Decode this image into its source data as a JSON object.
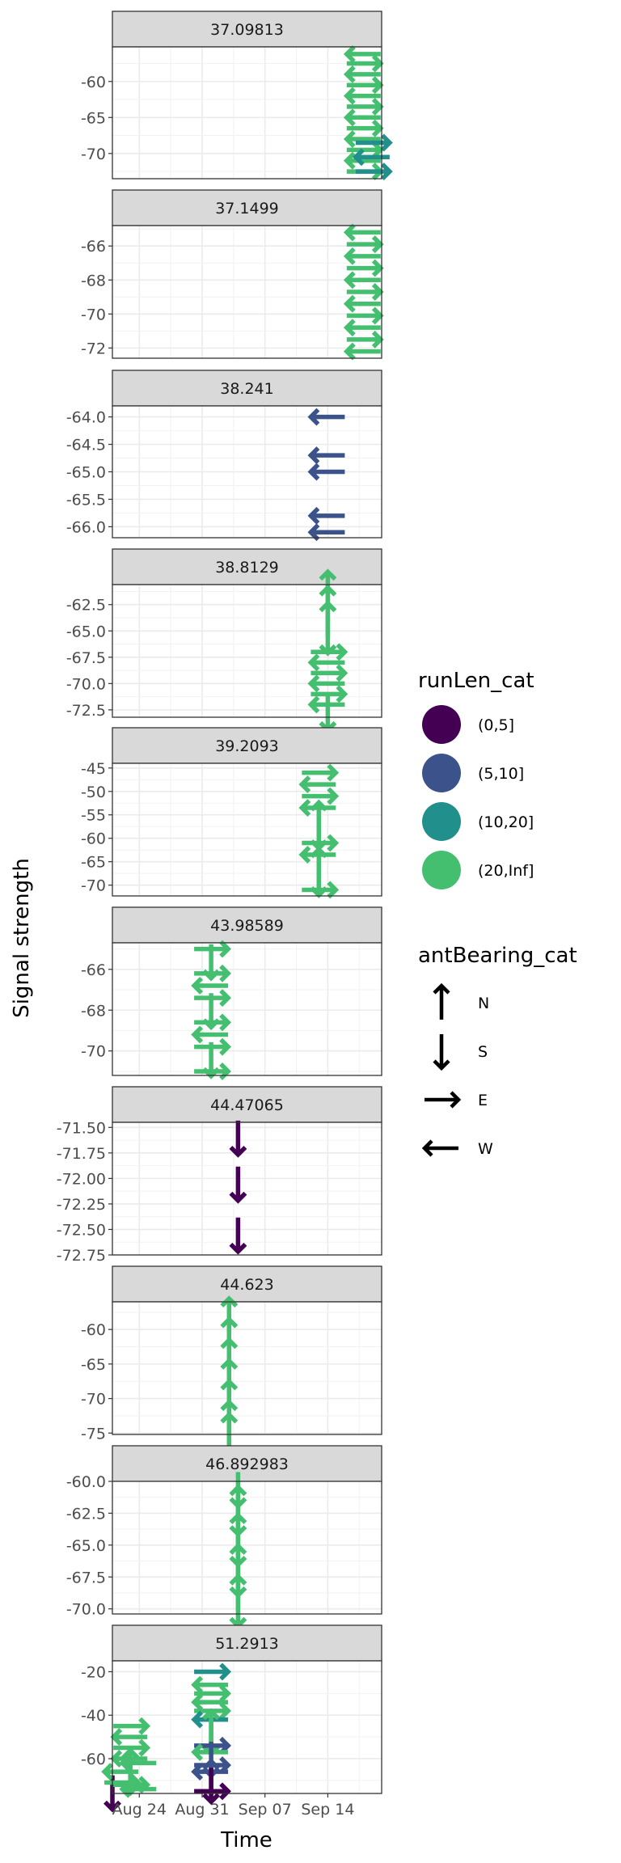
{
  "chart_data": {
    "type": "scatter",
    "xlabel": "Time",
    "ylabel": "Signal strength",
    "x_ticks": [
      "Aug 24",
      "Aug 31",
      "Sep 07",
      "Sep 14"
    ],
    "x_range": [
      "2023-08-21",
      "2023-09-20"
    ],
    "grid": true,
    "legend_placement": "right",
    "legends": [
      {
        "title": "runLen_cat",
        "entries": [
          {
            "label": "(0,5]",
            "color": "#440154"
          },
          {
            "label": "(5,10]",
            "color": "#3B528B"
          },
          {
            "label": "(10,20]",
            "color": "#21908C"
          },
          {
            "label": "(20,Inf]",
            "color": "#44BF70"
          }
        ]
      },
      {
        "title": "antBearing_cat",
        "entries": [
          {
            "label": "N",
            "icon": "arrow-up"
          },
          {
            "label": "S",
            "icon": "arrow-down"
          },
          {
            "label": "E",
            "icon": "arrow-right"
          },
          {
            "label": "W",
            "icon": "arrow-left"
          }
        ]
      }
    ],
    "panels": [
      {
        "label": "37.09813",
        "ylim": [
          -73.5,
          -55.2
        ],
        "y_ticks": [
          -60,
          -65,
          -70
        ],
        "points": [
          {
            "x": "2023-09-18",
            "y": -56.2,
            "bearing": "W",
            "run": "(20,Inf]"
          },
          {
            "x": "2023-09-18",
            "y": -57.5,
            "bearing": "E",
            "run": "(20,Inf]"
          },
          {
            "x": "2023-09-18",
            "y": -59.0,
            "bearing": "W",
            "run": "(20,Inf]"
          },
          {
            "x": "2023-09-18",
            "y": -60.5,
            "bearing": "E",
            "run": "(20,Inf]"
          },
          {
            "x": "2023-09-18",
            "y": -62.0,
            "bearing": "W",
            "run": "(20,Inf]"
          },
          {
            "x": "2023-09-18",
            "y": -63.5,
            "bearing": "E",
            "run": "(20,Inf]"
          },
          {
            "x": "2023-09-18",
            "y": -65.0,
            "bearing": "W",
            "run": "(20,Inf]"
          },
          {
            "x": "2023-09-18",
            "y": -66.5,
            "bearing": "E",
            "run": "(20,Inf]"
          },
          {
            "x": "2023-09-18",
            "y": -68.0,
            "bearing": "W",
            "run": "(20,Inf]"
          },
          {
            "x": "2023-09-18",
            "y": -69.5,
            "bearing": "E",
            "run": "(20,Inf]"
          },
          {
            "x": "2023-09-18",
            "y": -71.0,
            "bearing": "W",
            "run": "(20,Inf]"
          },
          {
            "x": "2023-09-18",
            "y": -72.5,
            "bearing": "E",
            "run": "(20,Inf]"
          },
          {
            "x": "2023-09-19",
            "y": -68.5,
            "bearing": "E",
            "run": "(10,20]"
          },
          {
            "x": "2023-09-19",
            "y": -70.5,
            "bearing": "W",
            "run": "(10,20]"
          },
          {
            "x": "2023-09-19",
            "y": -72.5,
            "bearing": "E",
            "run": "(10,20]"
          }
        ]
      },
      {
        "label": "37.1499",
        "ylim": [
          -72.6,
          -64.8
        ],
        "y_ticks": [
          -66,
          -68,
          -70,
          -72
        ],
        "points": [
          {
            "x": "2023-09-18",
            "y": -65.2,
            "bearing": "W",
            "run": "(20,Inf]"
          },
          {
            "x": "2023-09-18",
            "y": -65.9,
            "bearing": "E",
            "run": "(20,Inf]"
          },
          {
            "x": "2023-09-18",
            "y": -66.6,
            "bearing": "W",
            "run": "(20,Inf]"
          },
          {
            "x": "2023-09-18",
            "y": -67.3,
            "bearing": "E",
            "run": "(20,Inf]"
          },
          {
            "x": "2023-09-18",
            "y": -68.0,
            "bearing": "W",
            "run": "(20,Inf]"
          },
          {
            "x": "2023-09-18",
            "y": -68.7,
            "bearing": "E",
            "run": "(20,Inf]"
          },
          {
            "x": "2023-09-18",
            "y": -69.4,
            "bearing": "W",
            "run": "(20,Inf]"
          },
          {
            "x": "2023-09-18",
            "y": -70.1,
            "bearing": "E",
            "run": "(20,Inf]"
          },
          {
            "x": "2023-09-18",
            "y": -70.8,
            "bearing": "W",
            "run": "(20,Inf]"
          },
          {
            "x": "2023-09-18",
            "y": -71.5,
            "bearing": "E",
            "run": "(20,Inf]"
          },
          {
            "x": "2023-09-18",
            "y": -72.2,
            "bearing": "W",
            "run": "(20,Inf]"
          }
        ]
      },
      {
        "label": "38.241",
        "ylim": [
          -66.2,
          -63.8
        ],
        "y_ticks": [
          -64.0,
          -64.5,
          -65.0,
          -65.5,
          -66.0
        ],
        "y_decimals": 1,
        "points": [
          {
            "x": "2023-09-14",
            "y": -64.0,
            "bearing": "W",
            "run": "(5,10]"
          },
          {
            "x": "2023-09-14",
            "y": -64.7,
            "bearing": "W",
            "run": "(5,10]"
          },
          {
            "x": "2023-09-14",
            "y": -65.0,
            "bearing": "W",
            "run": "(5,10]"
          },
          {
            "x": "2023-09-14",
            "y": -65.8,
            "bearing": "W",
            "run": "(5,10]"
          },
          {
            "x": "2023-09-14",
            "y": -66.1,
            "bearing": "W",
            "run": "(5,10]"
          }
        ]
      },
      {
        "label": "38.8129",
        "ylim": [
          -73.2,
          -60.6
        ],
        "y_ticks": [
          -62.5,
          -65.0,
          -67.5,
          -70.0,
          -72.5
        ],
        "y_decimals": 1,
        "points": [
          {
            "x": "2023-09-14",
            "y": -61.0,
            "bearing": "N",
            "run": "(20,Inf]"
          },
          {
            "x": "2023-09-14",
            "y": -62.5,
            "bearing": "N",
            "run": "(20,Inf]"
          },
          {
            "x": "2023-09-14",
            "y": -64.0,
            "bearing": "N",
            "run": "(20,Inf]"
          },
          {
            "x": "2023-09-14",
            "y": -65.5,
            "bearing": "S",
            "run": "(20,Inf]"
          },
          {
            "x": "2023-09-14",
            "y": -67.0,
            "bearing": "E",
            "run": "(20,Inf]"
          },
          {
            "x": "2023-09-14",
            "y": -68.0,
            "bearing": "W",
            "run": "(20,Inf]"
          },
          {
            "x": "2023-09-14",
            "y": -69.0,
            "bearing": "E",
            "run": "(20,Inf]"
          },
          {
            "x": "2023-09-14",
            "y": -70.0,
            "bearing": "W",
            "run": "(20,Inf]"
          },
          {
            "x": "2023-09-14",
            "y": -71.0,
            "bearing": "E",
            "run": "(20,Inf]"
          },
          {
            "x": "2023-09-14",
            "y": -72.0,
            "bearing": "W",
            "run": "(20,Inf]"
          },
          {
            "x": "2023-09-14",
            "y": -72.8,
            "bearing": "S",
            "run": "(20,Inf]"
          }
        ]
      },
      {
        "label": "39.2093",
        "ylim": [
          -72.3,
          -44.0
        ],
        "y_ticks": [
          -45,
          -50,
          -55,
          -60,
          -65,
          -70
        ],
        "points": [
          {
            "x": "2023-09-13",
            "y": -46.0,
            "bearing": "E",
            "run": "(20,Inf]"
          },
          {
            "x": "2023-09-13",
            "y": -48.5,
            "bearing": "W",
            "run": "(20,Inf]"
          },
          {
            "x": "2023-09-13",
            "y": -51.0,
            "bearing": "E",
            "run": "(20,Inf]"
          },
          {
            "x": "2023-09-13",
            "y": -53.5,
            "bearing": "W",
            "run": "(20,Inf]"
          },
          {
            "x": "2023-09-13",
            "y": -56.0,
            "bearing": "N",
            "run": "(20,Inf]"
          },
          {
            "x": "2023-09-13",
            "y": -58.5,
            "bearing": "S",
            "run": "(20,Inf]"
          },
          {
            "x": "2023-09-13",
            "y": -61.0,
            "bearing": "E",
            "run": "(20,Inf]"
          },
          {
            "x": "2023-09-13",
            "y": -63.5,
            "bearing": "W",
            "run": "(20,Inf]"
          },
          {
            "x": "2023-09-13",
            "y": -66.0,
            "bearing": "N",
            "run": "(20,Inf]"
          },
          {
            "x": "2023-09-13",
            "y": -68.5,
            "bearing": "S",
            "run": "(20,Inf]"
          },
          {
            "x": "2023-09-13",
            "y": -71.0,
            "bearing": "E",
            "run": "(20,Inf]"
          }
        ]
      },
      {
        "label": "43.98589",
        "ylim": [
          -71.2,
          -64.7
        ],
        "y_ticks": [
          -66,
          -68,
          -70
        ],
        "points": [
          {
            "x": "2023-09-01",
            "y": -65.0,
            "bearing": "E",
            "run": "(20,Inf]"
          },
          {
            "x": "2023-09-01",
            "y": -65.6,
            "bearing": "S",
            "run": "(20,Inf]"
          },
          {
            "x": "2023-09-01",
            "y": -66.2,
            "bearing": "E",
            "run": "(20,Inf]"
          },
          {
            "x": "2023-09-01",
            "y": -66.8,
            "bearing": "W",
            "run": "(20,Inf]"
          },
          {
            "x": "2023-09-01",
            "y": -67.4,
            "bearing": "E",
            "run": "(20,Inf]"
          },
          {
            "x": "2023-09-01",
            "y": -68.0,
            "bearing": "S",
            "run": "(20,Inf]"
          },
          {
            "x": "2023-09-01",
            "y": -68.6,
            "bearing": "E",
            "run": "(20,Inf]"
          },
          {
            "x": "2023-09-01",
            "y": -69.2,
            "bearing": "W",
            "run": "(20,Inf]"
          },
          {
            "x": "2023-09-01",
            "y": -69.8,
            "bearing": "E",
            "run": "(20,Inf]"
          },
          {
            "x": "2023-09-01",
            "y": -70.4,
            "bearing": "S",
            "run": "(20,Inf]"
          },
          {
            "x": "2023-09-01",
            "y": -71.0,
            "bearing": "E",
            "run": "(20,Inf]"
          }
        ]
      },
      {
        "label": "44.47065",
        "ylim": [
          -72.75,
          -71.45
        ],
        "y_ticks": [
          -71.5,
          -71.75,
          -72.0,
          -72.25,
          -72.5,
          -72.75
        ],
        "y_decimals": 2,
        "points": [
          {
            "x": "2023-09-04",
            "y": -71.6,
            "bearing": "S",
            "run": "(0,5]"
          },
          {
            "x": "2023-09-04",
            "y": -72.05,
            "bearing": "S",
            "run": "(0,5]"
          },
          {
            "x": "2023-09-04",
            "y": -72.55,
            "bearing": "S",
            "run": "(0,5]"
          }
        ]
      },
      {
        "label": "44.623",
        "ylim": [
          -75.2,
          -56.0
        ],
        "y_ticks": [
          -60,
          -65,
          -70,
          -75
        ],
        "points": [
          {
            "x": "2023-09-03",
            "y": -58.0,
            "bearing": "N",
            "run": "(20,Inf]"
          },
          {
            "x": "2023-09-03",
            "y": -61.0,
            "bearing": "N",
            "run": "(20,Inf]"
          },
          {
            "x": "2023-09-03",
            "y": -64.0,
            "bearing": "N",
            "run": "(20,Inf]"
          },
          {
            "x": "2023-09-03",
            "y": -67.0,
            "bearing": "N",
            "run": "(20,Inf]"
          },
          {
            "x": "2023-09-03",
            "y": -70.0,
            "bearing": "N",
            "run": "(20,Inf]"
          },
          {
            "x": "2023-09-03",
            "y": -73.0,
            "bearing": "N",
            "run": "(20,Inf]"
          },
          {
            "x": "2023-09-03",
            "y": -74.8,
            "bearing": "N",
            "run": "(20,Inf]"
          }
        ]
      },
      {
        "label": "46.892983",
        "ylim": [
          -70.4,
          -60.0
        ],
        "y_ticks": [
          -60.0,
          -62.5,
          -65.0,
          -67.5,
          -70.0
        ],
        "y_decimals": 1,
        "points": [
          {
            "x": "2023-09-04",
            "y": -60.6,
            "bearing": "S",
            "run": "(20,Inf]"
          },
          {
            "x": "2023-09-04",
            "y": -61.8,
            "bearing": "N",
            "run": "(20,Inf]"
          },
          {
            "x": "2023-09-04",
            "y": -62.8,
            "bearing": "S",
            "run": "(20,Inf]"
          },
          {
            "x": "2023-09-04",
            "y": -64.0,
            "bearing": "N",
            "run": "(20,Inf]"
          },
          {
            "x": "2023-09-04",
            "y": -65.2,
            "bearing": "S",
            "run": "(20,Inf]"
          },
          {
            "x": "2023-09-04",
            "y": -66.4,
            "bearing": "N",
            "run": "(20,Inf]"
          },
          {
            "x": "2023-09-04",
            "y": -67.6,
            "bearing": "S",
            "run": "(20,Inf]"
          },
          {
            "x": "2023-09-04",
            "y": -68.8,
            "bearing": "N",
            "run": "(20,Inf]"
          },
          {
            "x": "2023-09-04",
            "y": -70.0,
            "bearing": "S",
            "run": "(20,Inf]"
          }
        ]
      },
      {
        "label": "51.2913",
        "ylim": [
          -76.0,
          -15.0
        ],
        "y_ticks": [
          -20,
          -40,
          -60
        ],
        "points": [
          {
            "x": "2023-08-21",
            "y": -75.5,
            "bearing": "S",
            "run": "(0,5]"
          },
          {
            "x": "2023-08-23",
            "y": -45.0,
            "bearing": "E",
            "run": "(20,Inf]"
          },
          {
            "x": "2023-08-23",
            "y": -50.0,
            "bearing": "W",
            "run": "(20,Inf]"
          },
          {
            "x": "2023-08-23",
            "y": -55.0,
            "bearing": "E",
            "run": "(20,Inf]"
          },
          {
            "x": "2023-08-23",
            "y": -60.0,
            "bearing": "W",
            "run": "(20,Inf]"
          },
          {
            "x": "2023-08-23",
            "y": -64.0,
            "bearing": "N",
            "run": "(20,Inf]"
          },
          {
            "x": "2023-08-23",
            "y": -68.0,
            "bearing": "S",
            "run": "(20,Inf]"
          },
          {
            "x": "2023-08-23",
            "y": -72.0,
            "bearing": "E",
            "run": "(20,Inf]"
          },
          {
            "x": "2023-08-22",
            "y": -66.0,
            "bearing": "W",
            "run": "(20,Inf]"
          },
          {
            "x": "2023-08-22",
            "y": -71.0,
            "bearing": "E",
            "run": "(20,Inf]"
          },
          {
            "x": "2023-08-24",
            "y": -62.0,
            "bearing": "W",
            "run": "(20,Inf]"
          },
          {
            "x": "2023-08-24",
            "y": -74.0,
            "bearing": "W",
            "run": "(20,Inf]"
          },
          {
            "x": "2023-09-01",
            "y": -20.0,
            "bearing": "E",
            "run": "(10,20]"
          },
          {
            "x": "2023-09-01",
            "y": -26.0,
            "bearing": "W",
            "run": "(20,Inf]"
          },
          {
            "x": "2023-09-01",
            "y": -30.0,
            "bearing": "E",
            "run": "(20,Inf]"
          },
          {
            "x": "2023-09-01",
            "y": -34.0,
            "bearing": "W",
            "run": "(20,Inf]"
          },
          {
            "x": "2023-09-01",
            "y": -38.0,
            "bearing": "E",
            "run": "(20,Inf]"
          },
          {
            "x": "2023-09-01",
            "y": -42.0,
            "bearing": "W",
            "run": "(10,20]"
          },
          {
            "x": "2023-09-01",
            "y": -46.0,
            "bearing": "N",
            "run": "(20,Inf]"
          },
          {
            "x": "2023-09-01",
            "y": -50.0,
            "bearing": "S",
            "run": "(20,Inf]"
          },
          {
            "x": "2023-09-01",
            "y": -54.0,
            "bearing": "E",
            "run": "(5,10]"
          },
          {
            "x": "2023-09-01",
            "y": -57.0,
            "bearing": "W",
            "run": "(20,Inf]"
          },
          {
            "x": "2023-09-01",
            "y": -60.0,
            "bearing": "S",
            "run": "(5,10]"
          },
          {
            "x": "2023-09-01",
            "y": -63.0,
            "bearing": "E",
            "run": "(5,10]"
          },
          {
            "x": "2023-09-01",
            "y": -66.0,
            "bearing": "W",
            "run": "(5,10]"
          },
          {
            "x": "2023-09-01",
            "y": -69.0,
            "bearing": "N",
            "run": "(5,10]"
          },
          {
            "x": "2023-09-01",
            "y": -72.0,
            "bearing": "S",
            "run": "(0,5]"
          },
          {
            "x": "2023-09-01",
            "y": -75.0,
            "bearing": "E",
            "run": "(0,5]"
          }
        ]
      }
    ]
  }
}
